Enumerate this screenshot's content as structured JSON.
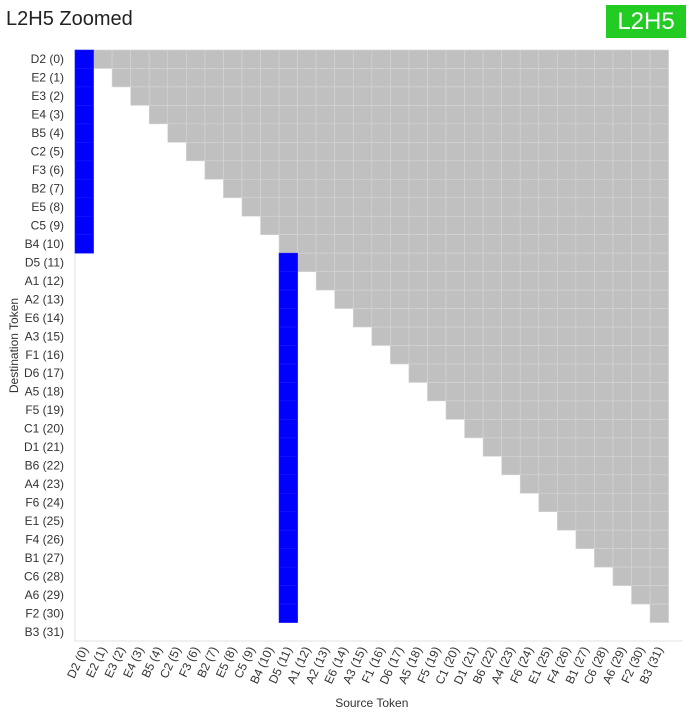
{
  "header": {
    "title": "L2H5 Zoomed",
    "badge": "L2H5"
  },
  "colors": {
    "attention": "#0000ff",
    "masked": "#c0c0c0",
    "empty": "#ffffff",
    "badge_bg": "#22cc22"
  },
  "chart_data": {
    "type": "heatmap",
    "title": "L2H5 Zoomed",
    "xlabel": "Source Token",
    "ylabel": "Destination Token",
    "tokens": [
      "D2 (0)",
      "E2 (1)",
      "E3 (2)",
      "E4 (3)",
      "B5 (4)",
      "C2 (5)",
      "F3 (6)",
      "B2 (7)",
      "E5 (8)",
      "C5 (9)",
      "B4 (10)",
      "D5 (11)",
      "A1 (12)",
      "A2 (13)",
      "E6 (14)",
      "A3 (15)",
      "F1 (16)",
      "D6 (17)",
      "A5 (18)",
      "F5 (19)",
      "C1 (20)",
      "D1 (21)",
      "B6 (22)",
      "A4 (23)",
      "F6 (24)",
      "E1 (25)",
      "F4 (26)",
      "B1 (27)",
      "C6 (28)",
      "A6 (29)",
      "F2 (30)",
      "B3 (31)"
    ],
    "masked_region": "upper-triangle (source index > destination index), rows 0-30",
    "attention": [
      {
        "destination_range": [
          0,
          10
        ],
        "source": 0,
        "value": 1.0
      },
      {
        "destination_range": [
          11,
          30
        ],
        "source": 11,
        "value": 1.0
      }
    ],
    "unrendered_rows": [
      31
    ],
    "grid": true
  }
}
